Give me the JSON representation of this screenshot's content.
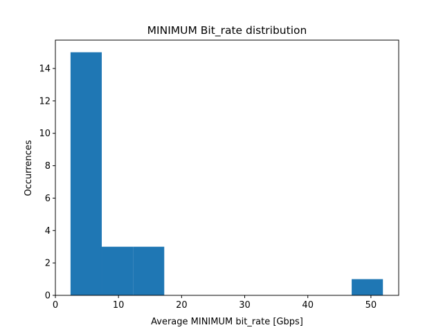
{
  "chart_data": {
    "type": "bar",
    "title": "MINIMUM Bit_rate distribution",
    "xlabel": "Average MINIMUM bit_rate [Gbps]",
    "ylabel": "Occurrences",
    "xlim": [
      0,
      54.4
    ],
    "ylim": [
      0,
      15.75
    ],
    "x_ticks": [
      0,
      10,
      20,
      30,
      40,
      50
    ],
    "y_ticks": [
      0,
      2,
      4,
      6,
      8,
      10,
      12,
      14
    ],
    "bar_color": "#1f77b4",
    "bins": [
      {
        "x0": 2.4,
        "x1": 7.35,
        "count": 15
      },
      {
        "x0": 7.35,
        "x1": 12.3,
        "count": 3
      },
      {
        "x0": 12.3,
        "x1": 17.25,
        "count": 3
      },
      {
        "x0": 17.25,
        "x1": 22.2,
        "count": 0
      },
      {
        "x0": 22.2,
        "x1": 27.15,
        "count": 0
      },
      {
        "x0": 27.15,
        "x1": 32.1,
        "count": 0
      },
      {
        "x0": 32.1,
        "x1": 37.05,
        "count": 0
      },
      {
        "x0": 37.05,
        "x1": 42.0,
        "count": 0
      },
      {
        "x0": 42.0,
        "x1": 46.95,
        "count": 0
      },
      {
        "x0": 46.95,
        "x1": 51.9,
        "count": 1
      }
    ],
    "grid": false,
    "legend": "none"
  }
}
